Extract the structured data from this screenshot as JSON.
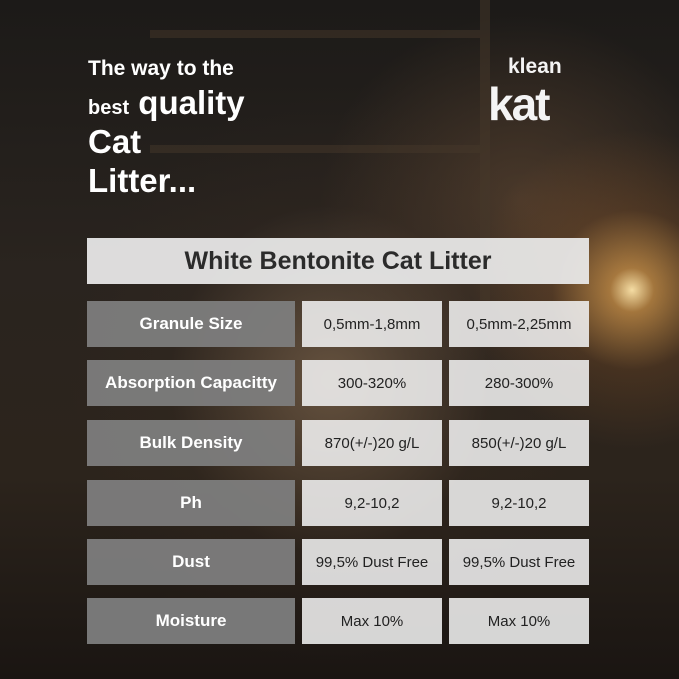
{
  "headline": {
    "line1": "The way to the",
    "line2_small": "best",
    "line2_big": "quality",
    "line3": "Cat",
    "line4": "Litter..."
  },
  "logo": {
    "text_top": "klean",
    "text_bottom": "kat"
  },
  "table": {
    "title": "White Bentonite Cat Litter",
    "rows": [
      {
        "label": "Granule Size",
        "v1": "0,5mm-1,8mm",
        "v2": "0,5mm-2,25mm"
      },
      {
        "label": "Absorption Capacitty",
        "v1": "300-320%",
        "v2": "280-300%"
      },
      {
        "label": "Bulk Density",
        "v1": "870(+/-)20 g/L",
        "v2": "850(+/-)20 g/L"
      },
      {
        "label": "Ph",
        "v1": "9,2-10,2",
        "v2": "9,2-10,2"
      },
      {
        "label": "Dust",
        "v1": "99,5% Dust Free",
        "v2": "99,5% Dust Free"
      },
      {
        "label": "Moisture",
        "v1": "Max 10%",
        "v2": "Max 10%"
      }
    ]
  }
}
